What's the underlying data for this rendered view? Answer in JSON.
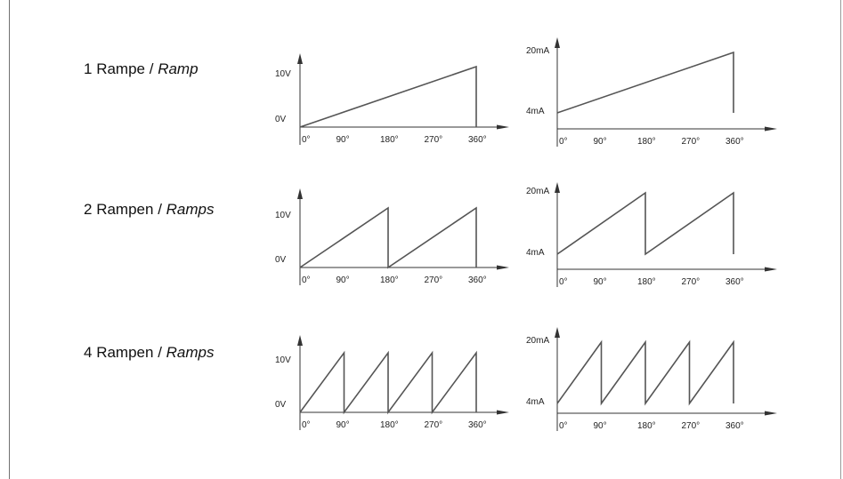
{
  "rows": [
    {
      "name": "Rampe",
      "sep": " / ",
      "italic": "Ramp",
      "ramps": 1
    },
    {
      "name": "Rampen",
      "sep": " / ",
      "italic": "Ramps",
      "ramps": 2
    },
    {
      "name": "Rampen",
      "sep": " / ",
      "italic": "Ramps",
      "ramps": 4
    }
  ],
  "row_numbers": [
    "1",
    "2",
    "4"
  ],
  "voltage_axis": {
    "high": "10V",
    "low": "0V"
  },
  "current_axis": {
    "high": "20mA",
    "low": "4mA"
  },
  "x_ticks": [
    "0°",
    "90°",
    "180°",
    "270°",
    "360°"
  ],
  "colors": {
    "line": "#555555",
    "axis": "#333333",
    "frame": "#707070"
  }
}
